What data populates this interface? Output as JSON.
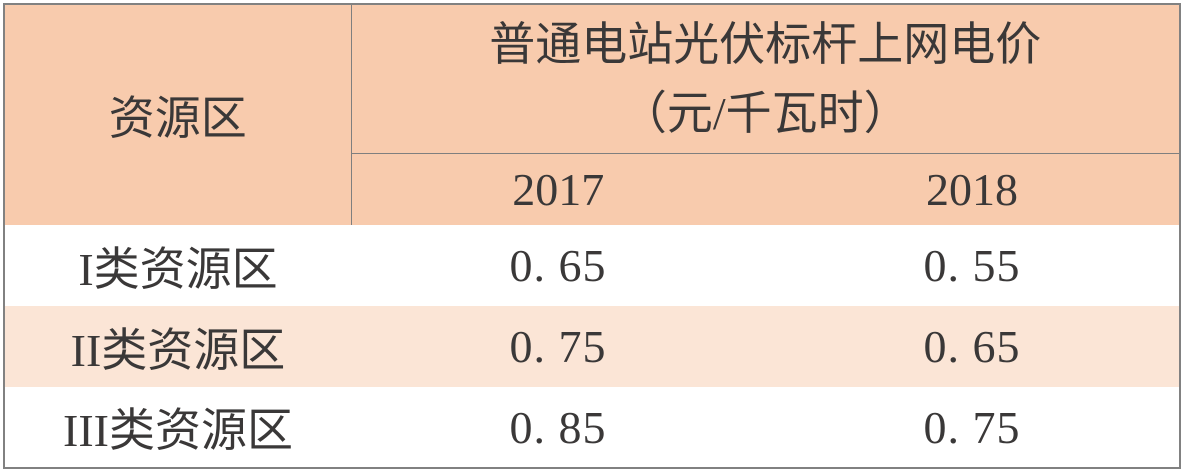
{
  "table": {
    "header": {
      "zone_label": "资源区",
      "title_line1": "普通电站光伏标杆上网电价",
      "title_line2": "（元/千瓦时）",
      "year_2017": "2017",
      "year_2018": "2018"
    },
    "rows": [
      {
        "label": "I类资源区",
        "price_2017": "0. 65",
        "price_2018": "0. 55"
      },
      {
        "label": "II类资源区",
        "price_2017": "0. 75",
        "price_2018": "0. 65"
      },
      {
        "label": "III类资源区",
        "price_2017": "0. 85",
        "price_2018": "0. 75"
      }
    ],
    "colors": {
      "header_bg": "#F8CBAD",
      "alt_row_bg": "#FBE5D6",
      "border": "#7F7F7F",
      "text": "#3A3838"
    }
  }
}
